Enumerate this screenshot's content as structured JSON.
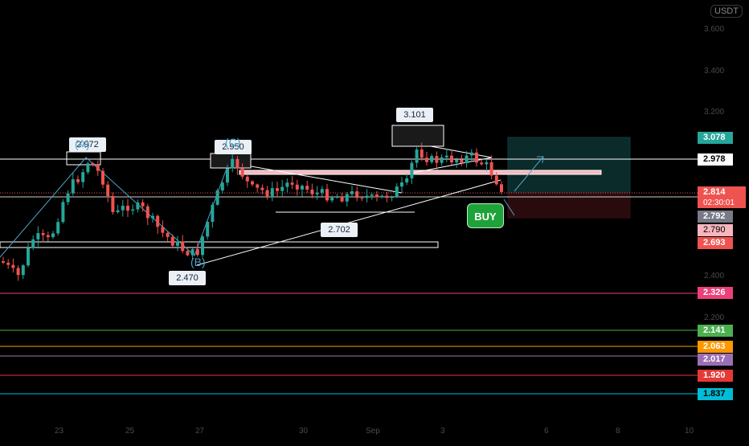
{
  "symbol_currency": "USDT",
  "price_axis_labels": [
    "3.600",
    "3.400",
    "3.200",
    "2.400",
    "2.200"
  ],
  "price_tags": [
    {
      "value": "3.078",
      "bg": "#26a69a",
      "fg": "#ffffff"
    },
    {
      "value": "2.978",
      "bg": "#ffffff",
      "fg": "#000000"
    },
    {
      "value": "2.814",
      "bg": "#ef5350",
      "fg": "#ffffff",
      "countdown": "02:30:01"
    },
    {
      "value": "2.792",
      "bg": "#787b86",
      "fg": "#ffffff"
    },
    {
      "value": "2.790",
      "bg": "#f7b6bd",
      "fg": "#000000"
    },
    {
      "value": "2.693",
      "bg": "#ef5350",
      "fg": "#ffffff"
    },
    {
      "value": "2.326",
      "bg": "#ec407a",
      "fg": "#ffffff"
    },
    {
      "value": "2.141",
      "bg": "#4caf50",
      "fg": "#ffffff"
    },
    {
      "value": "2.063",
      "bg": "#ff9800",
      "fg": "#ffffff"
    },
    {
      "value": "2.017",
      "bg": "#9c6fb5",
      "fg": "#ffffff"
    },
    {
      "value": "1.920",
      "bg": "#e53935",
      "fg": "#ffffff"
    },
    {
      "value": "1.837",
      "bg": "#00bcd4",
      "fg": "#ffffff"
    }
  ],
  "date_labels": [
    "23",
    "25",
    "27",
    "30",
    "Sep",
    "3",
    "6",
    "8",
    "10"
  ],
  "callouts": [
    "2.972",
    "2.950",
    "3.101",
    "2.702",
    "2.470"
  ],
  "wave_labels": [
    "(A)",
    "(C)",
    "(B)"
  ],
  "signal": "BUY",
  "colors": {
    "up": "#26a69a",
    "down": "#ef5350",
    "background": "#000000"
  }
}
